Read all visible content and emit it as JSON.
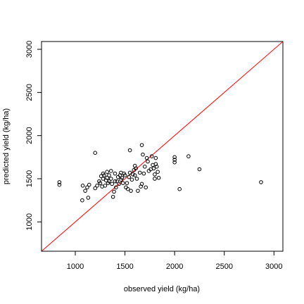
{
  "chart_data": {
    "type": "scatter",
    "title": "",
    "xlabel": "observed yield (kg/ha)",
    "ylabel": "predicted yield (kg/ha)",
    "xlim": [
      660,
      3090
    ],
    "ylim": [
      660,
      3090
    ],
    "x_ticks": [
      1000,
      1500,
      2000,
      2500,
      3000
    ],
    "y_ticks": [
      1000,
      1500,
      2000,
      2500,
      3000
    ],
    "x_tick_labels": [
      "1000",
      "1500",
      "2000",
      "2500",
      "3000"
    ],
    "y_tick_labels": [
      "1000",
      "1500",
      "2000",
      "2500",
      "3000"
    ],
    "grid": false,
    "colors": {
      "points": "#000000",
      "reference_line": "#ff0000"
    },
    "reference_line": {
      "slope": 1,
      "intercept": 0
    },
    "points": [
      [
        840,
        1460
      ],
      [
        840,
        1430
      ],
      [
        1070,
        1250
      ],
      [
        1075,
        1420
      ],
      [
        1100,
        1360
      ],
      [
        1120,
        1400
      ],
      [
        1130,
        1280
      ],
      [
        1140,
        1430
      ],
      [
        1200,
        1800
      ],
      [
        1200,
        1390
      ],
      [
        1220,
        1420
      ],
      [
        1240,
        1470
      ],
      [
        1250,
        1450
      ],
      [
        1260,
        1530
      ],
      [
        1270,
        1410
      ],
      [
        1280,
        1560
      ],
      [
        1280,
        1500
      ],
      [
        1290,
        1540
      ],
      [
        1300,
        1420
      ],
      [
        1310,
        1480
      ],
      [
        1320,
        1580
      ],
      [
        1320,
        1510
      ],
      [
        1330,
        1450
      ],
      [
        1340,
        1470
      ],
      [
        1340,
        1540
      ],
      [
        1360,
        1590
      ],
      [
        1360,
        1500
      ],
      [
        1370,
        1440
      ],
      [
        1380,
        1290
      ],
      [
        1390,
        1350
      ],
      [
        1400,
        1470
      ],
      [
        1400,
        1560
      ],
      [
        1410,
        1400
      ],
      [
        1420,
        1470
      ],
      [
        1430,
        1520
      ],
      [
        1440,
        1440
      ],
      [
        1450,
        1540
      ],
      [
        1460,
        1570
      ],
      [
        1460,
        1490
      ],
      [
        1470,
        1510
      ],
      [
        1480,
        1450
      ],
      [
        1490,
        1560
      ],
      [
        1500,
        1540
      ],
      [
        1510,
        1400
      ],
      [
        1520,
        1450
      ],
      [
        1530,
        1380
      ],
      [
        1540,
        1520
      ],
      [
        1550,
        1830
      ],
      [
        1550,
        1570
      ],
      [
        1560,
        1360
      ],
      [
        1570,
        1490
      ],
      [
        1580,
        1550
      ],
      [
        1590,
        1600
      ],
      [
        1600,
        1650
      ],
      [
        1600,
        1540
      ],
      [
        1610,
        1620
      ],
      [
        1620,
        1500
      ],
      [
        1630,
        1360
      ],
      [
        1650,
        1570
      ],
      [
        1660,
        1410
      ],
      [
        1670,
        1890
      ],
      [
        1670,
        1440
      ],
      [
        1680,
        1780
      ],
      [
        1690,
        1560
      ],
      [
        1700,
        1640
      ],
      [
        1710,
        1400
      ],
      [
        1720,
        1740
      ],
      [
        1730,
        1700
      ],
      [
        1740,
        1590
      ],
      [
        1760,
        1610
      ],
      [
        1770,
        1760
      ],
      [
        1780,
        1660
      ],
      [
        1790,
        1620
      ],
      [
        1800,
        1500
      ],
      [
        1800,
        1550
      ],
      [
        1810,
        1670
      ],
      [
        1810,
        1740
      ],
      [
        1820,
        1640
      ],
      [
        1830,
        1580
      ],
      [
        1840,
        1510
      ],
      [
        2000,
        1750
      ],
      [
        2000,
        1720
      ],
      [
        2000,
        1690
      ],
      [
        2050,
        1380
      ],
      [
        2140,
        1760
      ],
      [
        2250,
        1610
      ],
      [
        2870,
        1460
      ]
    ]
  }
}
